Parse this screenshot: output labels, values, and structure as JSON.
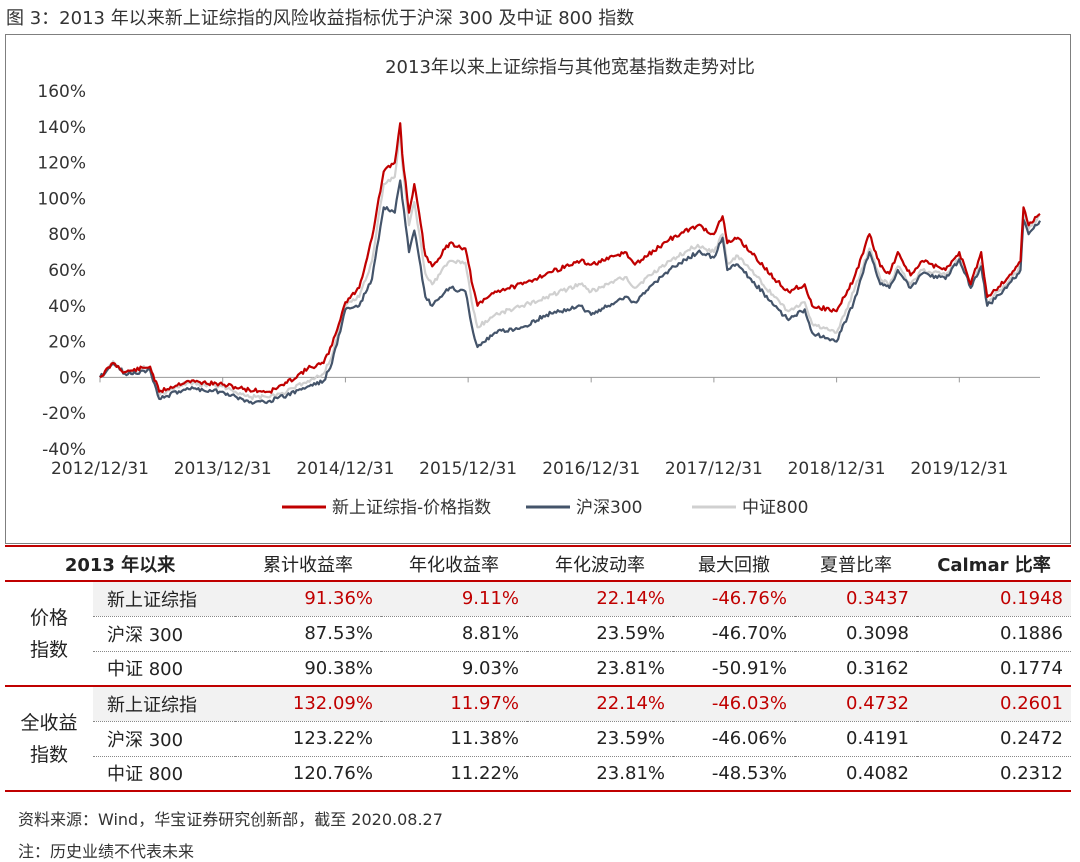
{
  "figure_title": "图 3：2013 年以来新上证综指的风险收益指标优于沪深 300 及中证 800 指数",
  "chart_data": {
    "type": "line",
    "title": "2013年以来上证综指与其他宽基指数走势对比",
    "x_ticks": [
      "2012/12/31",
      "2013/12/31",
      "2014/12/31",
      "2015/12/31",
      "2016/12/31",
      "2017/12/31",
      "2018/12/31",
      "2019/12/31"
    ],
    "xlim": [
      "2012/12/31",
      "2020/08/27"
    ],
    "ylim": [
      -40,
      160
    ],
    "y_ticks": [
      "-40%",
      "-20%",
      "0%",
      "20%",
      "40%",
      "60%",
      "80%",
      "100%",
      "120%",
      "140%",
      "160%"
    ],
    "grid": false,
    "legend_position": "bottom",
    "series": [
      {
        "name": "新上证综指-价格指数",
        "color": "#c00000",
        "points": [
          [
            "2012/12/31",
            0
          ],
          [
            "2013/02/08",
            8
          ],
          [
            "2013/03/15",
            3
          ],
          [
            "2013/05/29",
            6
          ],
          [
            "2013/06/25",
            -8
          ],
          [
            "2013/09/16",
            -2
          ],
          [
            "2013/12/31",
            -4
          ],
          [
            "2014/03/20",
            -7
          ],
          [
            "2014/05/20",
            -8
          ],
          [
            "2014/07/10",
            -3
          ],
          [
            "2014/09/10",
            5
          ],
          [
            "2014/10/27",
            8
          ],
          [
            "2014/11/21",
            18
          ],
          [
            "2014/12/31",
            42
          ],
          [
            "2015/02/10",
            50
          ],
          [
            "2015/03/20",
            78
          ],
          [
            "2015/04/24",
            115
          ],
          [
            "2015/05/27",
            120
          ],
          [
            "2015/06/12",
            142
          ],
          [
            "2015/06/18",
            125
          ],
          [
            "2015/07/08",
            92
          ],
          [
            "2015/07/24",
            108
          ],
          [
            "2015/08/26",
            68
          ],
          [
            "2015/09/15",
            62
          ],
          [
            "2015/11/06",
            75
          ],
          [
            "2015/12/23",
            72
          ],
          [
            "2016/01/15",
            50
          ],
          [
            "2016/01/28",
            40
          ],
          [
            "2016/03/20",
            48
          ],
          [
            "2016/06/10",
            52
          ],
          [
            "2016/08/20",
            58
          ],
          [
            "2016/11/29",
            65
          ],
          [
            "2016/12/31",
            63
          ],
          [
            "2017/02/20",
            66
          ],
          [
            "2017/04/10",
            70
          ],
          [
            "2017/05/10",
            63
          ],
          [
            "2017/08/20",
            77
          ],
          [
            "2017/11/13",
            85
          ],
          [
            "2017/12/31",
            80
          ],
          [
            "2018/01/26",
            90
          ],
          [
            "2018/02/09",
            75
          ],
          [
            "2018/03/12",
            78
          ],
          [
            "2018/04/20",
            70
          ],
          [
            "2018/06/29",
            55
          ],
          [
            "2018/08/10",
            48
          ],
          [
            "2018/09/27",
            52
          ],
          [
            "2018/10/19",
            40
          ],
          [
            "2018/12/31",
            37
          ],
          [
            "2019/02/20",
            55
          ],
          [
            "2019/04/08",
            80
          ],
          [
            "2019/05/10",
            62
          ],
          [
            "2019/06/06",
            58
          ],
          [
            "2019/07/01",
            70
          ],
          [
            "2019/08/08",
            57
          ],
          [
            "2019/09/12",
            65
          ],
          [
            "2019/11/20",
            60
          ],
          [
            "2019/12/31",
            70
          ],
          [
            "2020/02/03",
            52
          ],
          [
            "2020/03/05",
            70
          ],
          [
            "2020/03/23",
            45
          ],
          [
            "2020/05/20",
            55
          ],
          [
            "2020/06/30",
            65
          ],
          [
            "2020/07/09",
            95
          ],
          [
            "2020/07/24",
            85
          ],
          [
            "2020/08/27",
            91.36
          ]
        ]
      },
      {
        "name": "沪深300",
        "color": "#44546a",
        "points": [
          [
            "2012/12/31",
            0
          ],
          [
            "2013/02/08",
            8
          ],
          [
            "2013/03/15",
            2
          ],
          [
            "2013/05/29",
            4
          ],
          [
            "2013/06/25",
            -12
          ],
          [
            "2013/09/16",
            -6
          ],
          [
            "2013/12/31",
            -8
          ],
          [
            "2014/03/20",
            -14
          ],
          [
            "2014/05/20",
            -13
          ],
          [
            "2014/07/10",
            -10
          ],
          [
            "2014/09/10",
            -5
          ],
          [
            "2014/10/27",
            -2
          ],
          [
            "2014/11/21",
            8
          ],
          [
            "2014/12/31",
            38
          ],
          [
            "2015/02/10",
            40
          ],
          [
            "2015/03/20",
            55
          ],
          [
            "2015/04/24",
            95
          ],
          [
            "2015/05/27",
            92
          ],
          [
            "2015/06/12",
            110
          ],
          [
            "2015/06/18",
            100
          ],
          [
            "2015/07/08",
            70
          ],
          [
            "2015/07/24",
            82
          ],
          [
            "2015/08/26",
            45
          ],
          [
            "2015/09/15",
            40
          ],
          [
            "2015/11/06",
            50
          ],
          [
            "2015/12/23",
            48
          ],
          [
            "2016/01/15",
            25
          ],
          [
            "2016/01/28",
            17
          ],
          [
            "2016/03/20",
            25
          ],
          [
            "2016/06/10",
            28
          ],
          [
            "2016/08/20",
            35
          ],
          [
            "2016/11/29",
            40
          ],
          [
            "2016/12/31",
            35
          ],
          [
            "2017/02/20",
            40
          ],
          [
            "2017/04/10",
            45
          ],
          [
            "2017/05/10",
            42
          ],
          [
            "2017/08/20",
            60
          ],
          [
            "2017/11/13",
            70
          ],
          [
            "2017/12/31",
            67
          ],
          [
            "2018/01/26",
            78
          ],
          [
            "2018/02/09",
            60
          ],
          [
            "2018/03/12",
            63
          ],
          [
            "2018/04/20",
            55
          ],
          [
            "2018/06/29",
            40
          ],
          [
            "2018/08/10",
            32
          ],
          [
            "2018/09/27",
            38
          ],
          [
            "2018/10/19",
            25
          ],
          [
            "2018/12/31",
            20
          ],
          [
            "2019/02/20",
            42
          ],
          [
            "2019/04/08",
            70
          ],
          [
            "2019/05/10",
            52
          ],
          [
            "2019/06/06",
            50
          ],
          [
            "2019/07/01",
            60
          ],
          [
            "2019/08/08",
            50
          ],
          [
            "2019/09/12",
            58
          ],
          [
            "2019/11/20",
            55
          ],
          [
            "2019/12/31",
            66
          ],
          [
            "2020/02/03",
            50
          ],
          [
            "2020/03/05",
            62
          ],
          [
            "2020/03/23",
            40
          ],
          [
            "2020/05/20",
            50
          ],
          [
            "2020/06/30",
            60
          ],
          [
            "2020/07/09",
            88
          ],
          [
            "2020/07/24",
            80
          ],
          [
            "2020/08/27",
            87.53
          ]
        ]
      },
      {
        "name": "中证800",
        "color": "#d0d0d0",
        "points": [
          [
            "2012/12/31",
            0
          ],
          [
            "2013/02/08",
            9
          ],
          [
            "2013/03/15",
            3
          ],
          [
            "2013/05/29",
            6
          ],
          [
            "2013/06/25",
            -10
          ],
          [
            "2013/09/16",
            -3
          ],
          [
            "2013/12/31",
            -5
          ],
          [
            "2014/03/20",
            -11
          ],
          [
            "2014/05/20",
            -11
          ],
          [
            "2014/07/10",
            -8
          ],
          [
            "2014/09/10",
            -2
          ],
          [
            "2014/10/27",
            2
          ],
          [
            "2014/11/21",
            12
          ],
          [
            "2014/12/31",
            40
          ],
          [
            "2015/02/10",
            45
          ],
          [
            "2015/03/20",
            65
          ],
          [
            "2015/04/24",
            108
          ],
          [
            "2015/05/27",
            112
          ],
          [
            "2015/06/12",
            138
          ],
          [
            "2015/06/18",
            120
          ],
          [
            "2015/07/08",
            85
          ],
          [
            "2015/07/24",
            98
          ],
          [
            "2015/08/26",
            58
          ],
          [
            "2015/09/15",
            52
          ],
          [
            "2015/11/06",
            65
          ],
          [
            "2015/12/23",
            64
          ],
          [
            "2016/01/15",
            38
          ],
          [
            "2016/01/28",
            28
          ],
          [
            "2016/03/20",
            35
          ],
          [
            "2016/06/10",
            40
          ],
          [
            "2016/08/20",
            45
          ],
          [
            "2016/11/29",
            52
          ],
          [
            "2016/12/31",
            48
          ],
          [
            "2017/02/20",
            52
          ],
          [
            "2017/04/10",
            56
          ],
          [
            "2017/05/10",
            50
          ],
          [
            "2017/08/20",
            65
          ],
          [
            "2017/11/13",
            74
          ],
          [
            "2017/12/31",
            70
          ],
          [
            "2018/01/26",
            80
          ],
          [
            "2018/02/09",
            64
          ],
          [
            "2018/03/12",
            68
          ],
          [
            "2018/04/20",
            60
          ],
          [
            "2018/06/29",
            45
          ],
          [
            "2018/08/10",
            37
          ],
          [
            "2018/09/27",
            42
          ],
          [
            "2018/10/19",
            30
          ],
          [
            "2018/12/31",
            25
          ],
          [
            "2019/02/20",
            48
          ],
          [
            "2019/04/08",
            72
          ],
          [
            "2019/05/10",
            55
          ],
          [
            "2019/06/06",
            52
          ],
          [
            "2019/07/01",
            62
          ],
          [
            "2019/08/08",
            52
          ],
          [
            "2019/09/12",
            60
          ],
          [
            "2019/11/20",
            57
          ],
          [
            "2019/12/31",
            67
          ],
          [
            "2020/02/03",
            52
          ],
          [
            "2020/03/05",
            64
          ],
          [
            "2020/03/23",
            42
          ],
          [
            "2020/05/20",
            52
          ],
          [
            "2020/06/30",
            62
          ],
          [
            "2020/07/09",
            92
          ],
          [
            "2020/07/24",
            83
          ],
          [
            "2020/08/27",
            90.38
          ]
        ]
      }
    ]
  },
  "table": {
    "headers": [
      "2013 年以来",
      "累计收益率",
      "年化收益率",
      "年化波动率",
      "最大回撤",
      "夏普比率",
      "Calmar 比率"
    ],
    "groups": [
      {
        "label": "价格指数",
        "label_lines": [
          "价格",
          "指数"
        ],
        "rows": [
          {
            "name": "新上证综指",
            "values": [
              "91.36%",
              "9.11%",
              "22.14%",
              "-46.76%",
              "0.3437",
              "0.1948"
            ]
          },
          {
            "name": "沪深 300",
            "values": [
              "87.53%",
              "8.81%",
              "23.59%",
              "-46.70%",
              "0.3098",
              "0.1886"
            ]
          },
          {
            "name": "中证 800",
            "values": [
              "90.38%",
              "9.03%",
              "23.81%",
              "-50.91%",
              "0.3162",
              "0.1774"
            ]
          }
        ]
      },
      {
        "label": "全收益指数",
        "label_lines": [
          "全收益",
          "指数"
        ],
        "rows": [
          {
            "name": "新上证综指",
            "values": [
              "132.09%",
              "11.97%",
              "22.14%",
              "-46.03%",
              "0.4732",
              "0.2601"
            ]
          },
          {
            "name": "沪深 300",
            "values": [
              "123.22%",
              "11.38%",
              "23.59%",
              "-46.06%",
              "0.4191",
              "0.2472"
            ]
          },
          {
            "name": "中证 800",
            "values": [
              "120.76%",
              "11.22%",
              "23.81%",
              "-48.53%",
              "0.4082",
              "0.2312"
            ]
          }
        ]
      }
    ],
    "highlight_color": "#c00000"
  },
  "source": "资料来源：Wind，华宝证券研究创新部，截至 2020.08.27",
  "note": "注：历史业绩不代表未来"
}
